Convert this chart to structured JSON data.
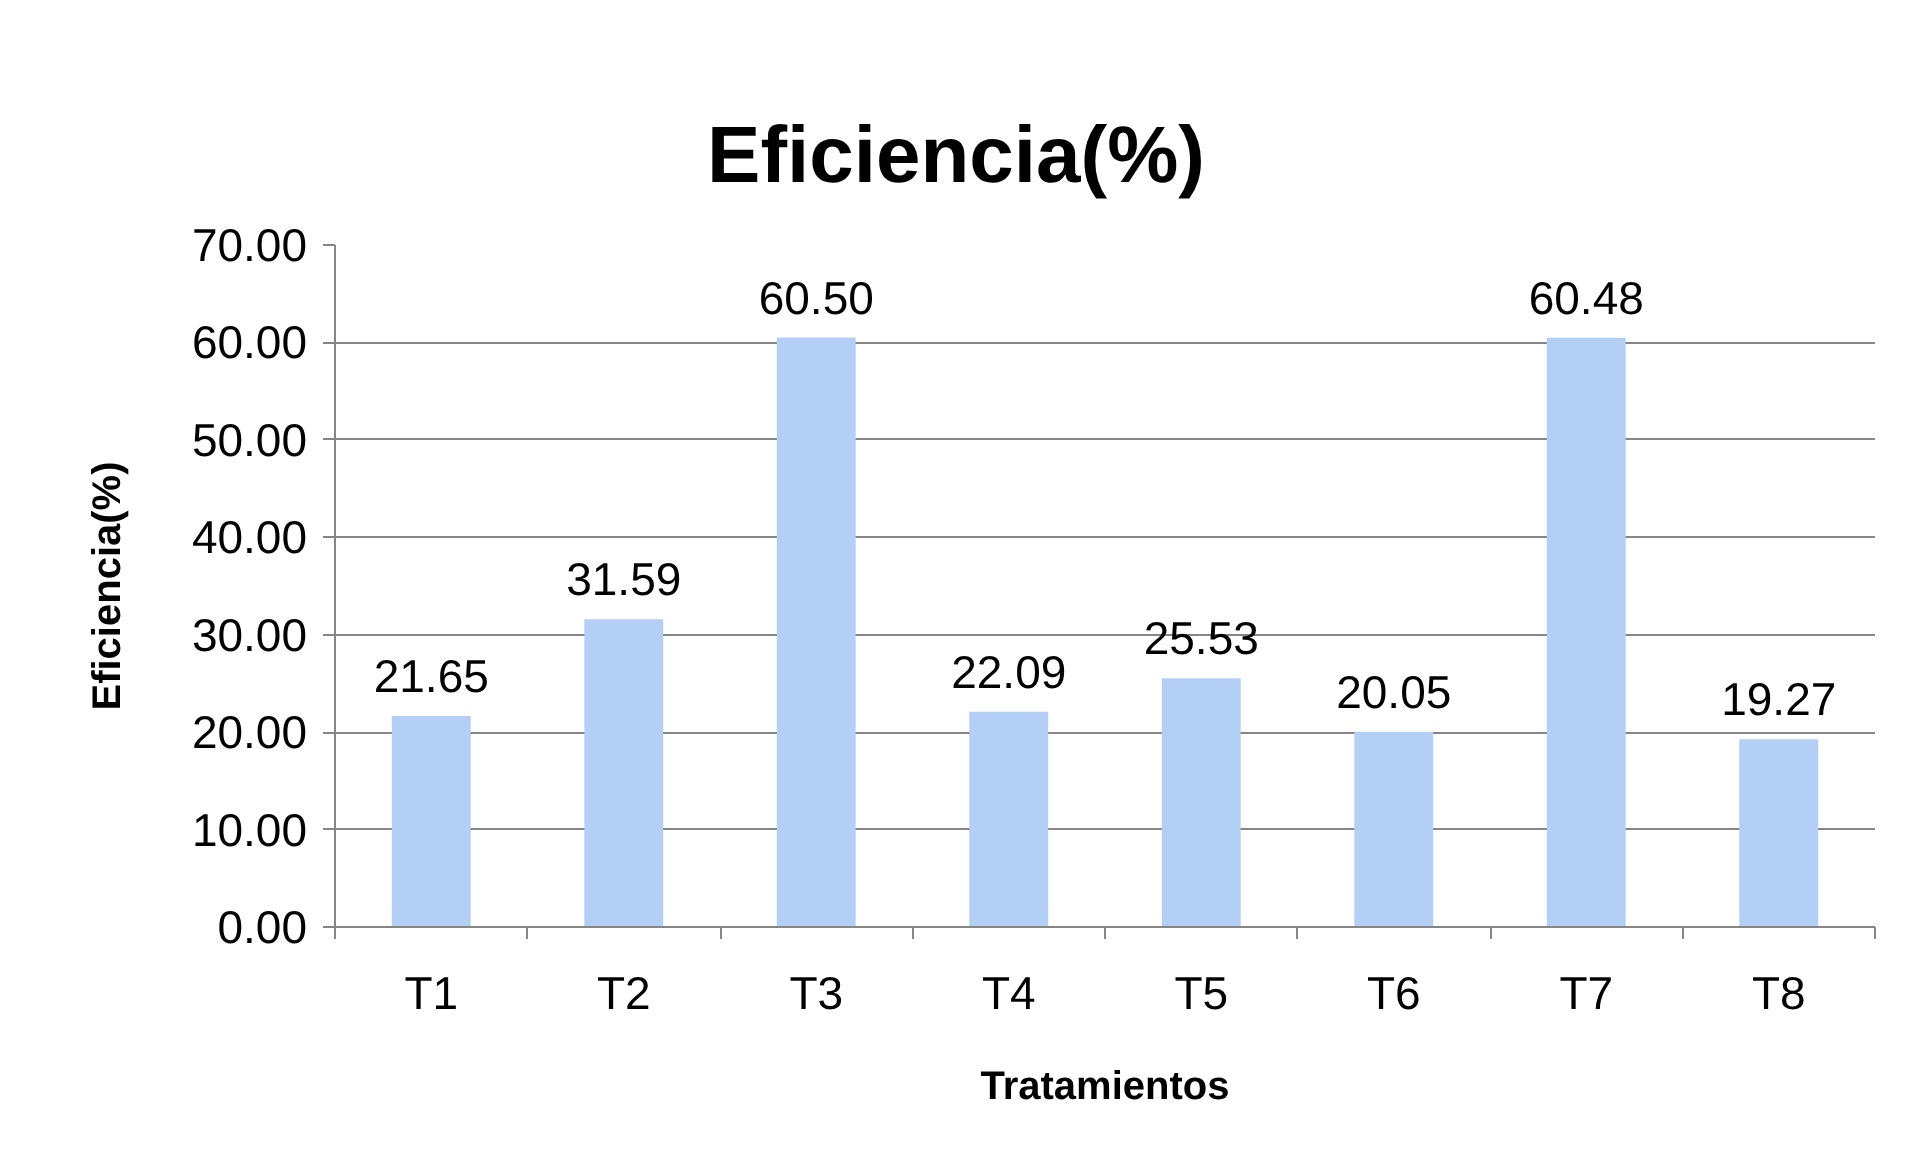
{
  "chart_data": {
    "type": "bar",
    "title": "Eficiencia(%)",
    "xlabel": "Tratamientos",
    "ylabel": "Eficiencia(%)",
    "categories": [
      "T1",
      "T2",
      "T3",
      "T4",
      "T5",
      "T6",
      "T7",
      "T8"
    ],
    "values": [
      21.65,
      31.59,
      60.5,
      22.09,
      25.53,
      20.05,
      60.48,
      19.27
    ],
    "value_labels": [
      "21.65",
      "31.59",
      "60.50",
      "22.09",
      "25.53",
      "20.05",
      "60.48",
      "19.27"
    ],
    "color": "#b4cff6",
    "ylim": [
      0,
      70
    ],
    "yticks": [
      {
        "value": 0,
        "label": "0.00"
      },
      {
        "value": 10,
        "label": "10.00"
      },
      {
        "value": 20,
        "label": "20.00"
      },
      {
        "value": 30,
        "label": "30.00"
      },
      {
        "value": 40,
        "label": "40.00"
      },
      {
        "value": 50,
        "label": "50.00"
      },
      {
        "value": 60,
        "label": "60.00"
      },
      {
        "value": 70,
        "label": "70.00"
      }
    ],
    "grid": "y"
  }
}
